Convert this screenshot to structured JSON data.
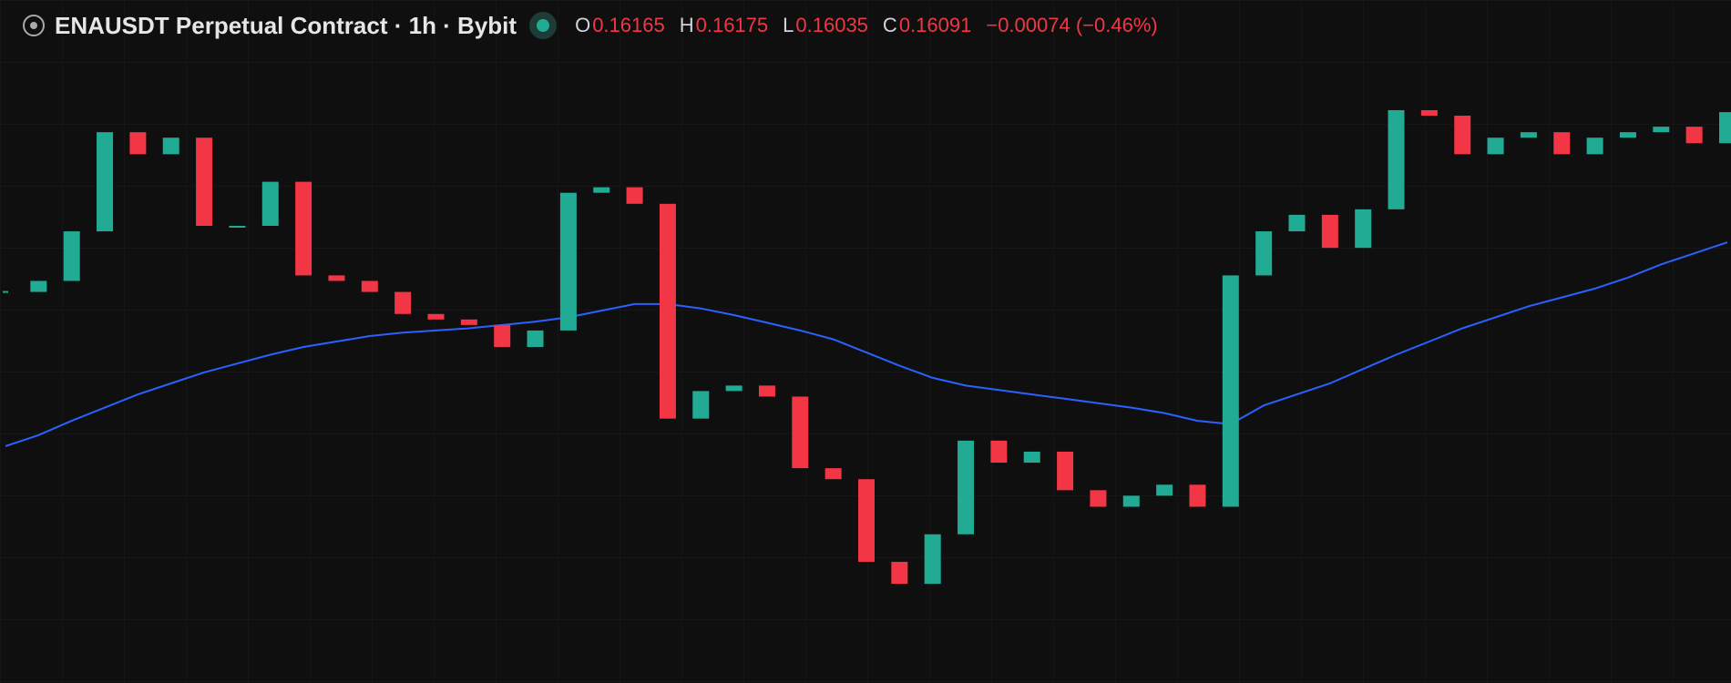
{
  "header": {
    "title": "ENAUSDT Perpetual Contract · 1h · Bybit",
    "open_label": "O",
    "open": 0.16165,
    "high_label": "H",
    "high": 0.16175,
    "low_label": "L",
    "low": 0.16035,
    "close_label": "C",
    "close": 0.16091,
    "change": "−0.00074 (−0.46%)"
  },
  "chart_data": {
    "type": "candlestick",
    "ylim": [
      0.135,
      0.166
    ],
    "up_color": "#22ab94",
    "down_color": "#f23645",
    "ma_color": "#2962ff",
    "close": [
      0.15275,
      0.15325,
      0.1555,
      0.16,
      0.159,
      0.15975,
      0.15575,
      0.15575,
      0.15775,
      0.1535,
      0.15325,
      0.15275,
      0.15175,
      0.1515,
      0.15125,
      0.15025,
      0.151,
      0.15725,
      0.1575,
      0.15675,
      0.147,
      0.14825,
      0.1485,
      0.148,
      0.14475,
      0.14425,
      0.1405,
      0.1395,
      0.14175,
      0.146,
      0.145,
      0.1455,
      0.14375,
      0.143,
      0.1435,
      0.144,
      0.143,
      0.1535,
      0.1555,
      0.15625,
      0.15475,
      0.1565,
      0.161,
      0.16075,
      0.159,
      0.15975,
      0.16,
      0.159,
      0.15975,
      0.16,
      0.16025,
      0.1595,
      0.16091
    ],
    "ma": [
      0.14575,
      0.14625,
      0.1469,
      0.1475,
      0.1481,
      0.1486,
      0.1491,
      0.1495,
      0.1499,
      0.15025,
      0.1505,
      0.15075,
      0.1509,
      0.151,
      0.1511,
      0.15125,
      0.1514,
      0.1516,
      0.1519,
      0.1522,
      0.1522,
      0.152,
      0.1517,
      0.15135,
      0.151,
      0.1506,
      0.15,
      0.1494,
      0.14885,
      0.1485,
      0.1483,
      0.1481,
      0.1479,
      0.1477,
      0.1475,
      0.14725,
      0.1469,
      0.14675,
      0.1476,
      0.1481,
      0.1486,
      0.14925,
      0.1499,
      0.1505,
      0.1511,
      0.1516,
      0.1521,
      0.1525,
      0.1529,
      0.1534,
      0.154,
      0.1545,
      0.155
    ]
  }
}
